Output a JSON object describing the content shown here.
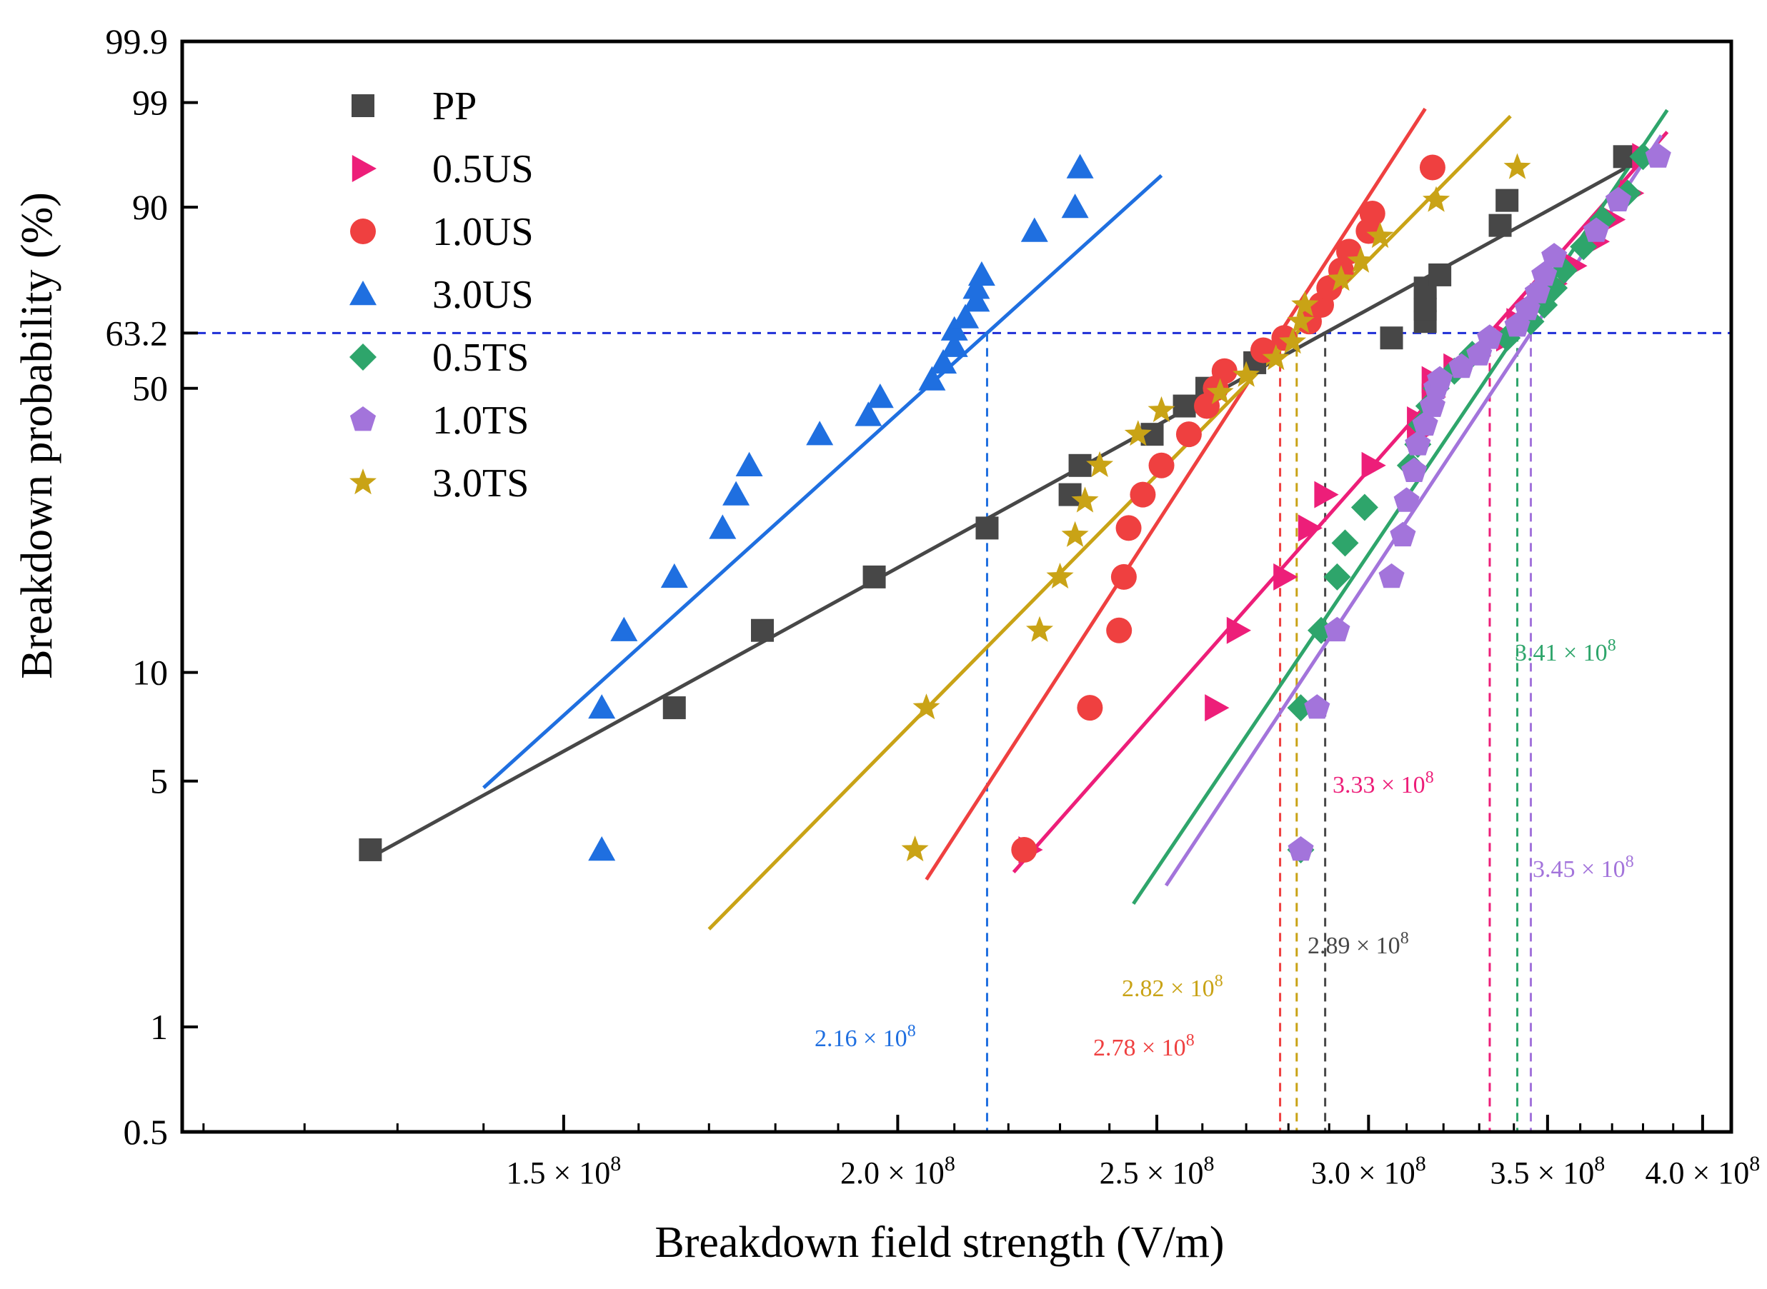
{
  "chart_data": {
    "type": "scatter",
    "title": "",
    "xlabel": "Breakdown field strength (V/m)",
    "ylabel": "Breakdown probability (%)",
    "x_scale": "log",
    "y_scale": "weibull",
    "xlim": [
      108000000,
      410000000
    ],
    "ylim": [
      0.5,
      99.9
    ],
    "x_ticks": [
      {
        "value": 150000000,
        "mantissa": "1.5",
        "label": "1.5 × 10",
        "exp": "8"
      },
      {
        "value": 200000000,
        "mantissa": "2.0",
        "label": "2.0 × 10",
        "exp": "8"
      },
      {
        "value": 250000000,
        "mantissa": "2.5",
        "label": "2.5 × 10",
        "exp": "8"
      },
      {
        "value": 300000000,
        "mantissa": "3.0",
        "label": "3.0 × 10",
        "exp": "8"
      },
      {
        "value": 350000000,
        "mantissa": "3.5",
        "label": "3.5 × 10",
        "exp": "8"
      },
      {
        "value": 400000000,
        "mantissa": "4.0",
        "label": "4.0 × 10",
        "exp": "8"
      }
    ],
    "y_ticks": [
      {
        "value": 0.5,
        "label": "0.5"
      },
      {
        "value": 1,
        "label": "1"
      },
      {
        "value": 5,
        "label": "5"
      },
      {
        "value": 10,
        "label": "10"
      },
      {
        "value": 50,
        "label": "50"
      },
      {
        "value": 63.2,
        "label": "63.2"
      },
      {
        "value": 90,
        "label": "90"
      },
      {
        "value": 99,
        "label": "99"
      },
      {
        "value": 99.9,
        "label": "99.9"
      }
    ],
    "reference_line": {
      "y": 63.2,
      "color": "#1f2fd6",
      "style": "dashed"
    },
    "legend_position": "top-left",
    "series": [
      {
        "name": "PP",
        "color": "#474747",
        "marker": "square",
        "eta": 289000000,
        "annotation": "2.89 × 10",
        "annotation_exp": "8",
        "fit_range": [
          128000000,
          380000000
        ],
        "points": [
          [
            127000000,
            3.2
          ],
          [
            165000000,
            8
          ],
          [
            178000000,
            13
          ],
          [
            196000000,
            18
          ],
          [
            216000000,
            24
          ],
          [
            232000000,
            29
          ],
          [
            234000000,
            34
          ],
          [
            249000000,
            40
          ],
          [
            256000000,
            46
          ],
          [
            261000000,
            50
          ],
          [
            272000000,
            56
          ],
          [
            306000000,
            62
          ],
          [
            315000000,
            66
          ],
          [
            315000000,
            69
          ],
          [
            315000000,
            71
          ],
          [
            315000000,
            74
          ],
          [
            319000000,
            77
          ],
          [
            336000000,
            87
          ],
          [
            338000000,
            91
          ],
          [
            374000000,
            96
          ]
        ]
      },
      {
        "name": "0.5US",
        "color": "#ed1e79",
        "marker": "triangle-right",
        "eta": 333000000,
        "annotation": "3.33 × 10",
        "annotation_exp": "8",
        "fit_range": [
          221000000,
          388000000
        ],
        "points": [
          [
            224000000,
            3.2
          ],
          [
            263000000,
            8
          ],
          [
            268000000,
            13
          ],
          [
            279000000,
            18
          ],
          [
            285000000,
            24
          ],
          [
            289000000,
            29
          ],
          [
            301000000,
            34
          ],
          [
            313000000,
            40
          ],
          [
            313000000,
            43
          ],
          [
            317000000,
            48
          ],
          [
            317000000,
            52
          ],
          [
            323000000,
            55
          ],
          [
            338000000,
            62
          ],
          [
            341000000,
            66
          ],
          [
            345000000,
            69
          ],
          [
            348000000,
            72
          ],
          [
            352000000,
            75
          ],
          [
            358000000,
            79
          ],
          [
            365000000,
            84
          ],
          [
            370000000,
            88
          ],
          [
            376000000,
            92
          ],
          [
            380000000,
            96
          ]
        ]
      },
      {
        "name": "1.0US",
        "color": "#ef4040",
        "marker": "circle",
        "eta": 278000000,
        "annotation": "2.78 × 10",
        "annotation_exp": "8",
        "fit_range": [
          205000000,
          315000000
        ],
        "points": [
          [
            223000000,
            3.2
          ],
          [
            236000000,
            8
          ],
          [
            242000000,
            13
          ],
          [
            243000000,
            18
          ],
          [
            244000000,
            24
          ],
          [
            247000000,
            29
          ],
          [
            251000000,
            34
          ],
          [
            257000000,
            40
          ],
          [
            261000000,
            46
          ],
          [
            263000000,
            50
          ],
          [
            265000000,
            54
          ],
          [
            274000000,
            59
          ],
          [
            279000000,
            62
          ],
          [
            285000000,
            66
          ],
          [
            288000000,
            70
          ],
          [
            290000000,
            74
          ],
          [
            293000000,
            78
          ],
          [
            295000000,
            82
          ],
          [
            300000000,
            86
          ],
          [
            301000000,
            89
          ],
          [
            317000000,
            95
          ]
        ]
      },
      {
        "name": "3.0US",
        "color": "#1f6fe0",
        "marker": "triangle-up",
        "eta": 216000000,
        "annotation": "2.16 × 10",
        "annotation_exp": "8",
        "fit_range": [
          140000000,
          251000000
        ],
        "points": [
          [
            155000000,
            3.2
          ],
          [
            155000000,
            8
          ],
          [
            158000000,
            13
          ],
          [
            165000000,
            18
          ],
          [
            172000000,
            24
          ],
          [
            174000000,
            29
          ],
          [
            176000000,
            34
          ],
          [
            187000000,
            40
          ],
          [
            195000000,
            44
          ],
          [
            197000000,
            48
          ],
          [
            206000000,
            52
          ],
          [
            208000000,
            56
          ],
          [
            210000000,
            60
          ],
          [
            210000000,
            64
          ],
          [
            212000000,
            67
          ],
          [
            214000000,
            71
          ],
          [
            214000000,
            74
          ],
          [
            215000000,
            77
          ],
          [
            225000000,
            86
          ],
          [
            233000000,
            90
          ],
          [
            234000000,
            95
          ]
        ]
      },
      {
        "name": "0.5TS",
        "color": "#2ea56b",
        "marker": "diamond",
        "eta": 341000000,
        "annotation": "3.41 × 10",
        "annotation_exp": "8",
        "fit_range": [
          245000000,
          388000000
        ],
        "points": [
          [
            283000000,
            3.2
          ],
          [
            283000000,
            8
          ],
          [
            288000000,
            13
          ],
          [
            292000000,
            18
          ],
          [
            294000000,
            22
          ],
          [
            299000000,
            27
          ],
          [
            311000000,
            34
          ],
          [
            313000000,
            38
          ],
          [
            314000000,
            42
          ],
          [
            316000000,
            46
          ],
          [
            318000000,
            50
          ],
          [
            323000000,
            54
          ],
          [
            328000000,
            58
          ],
          [
            338000000,
            62
          ],
          [
            345000000,
            66
          ],
          [
            349000000,
            70
          ],
          [
            352000000,
            74
          ],
          [
            355000000,
            78
          ],
          [
            361000000,
            83
          ],
          [
            367000000,
            88
          ],
          [
            375000000,
            92
          ],
          [
            380000000,
            96
          ]
        ]
      },
      {
        "name": "1.0TS",
        "color": "#a374db",
        "marker": "pentagon",
        "eta": 345000000,
        "annotation": "3.45 × 10",
        "annotation_exp": "8",
        "fit_range": [
          252000000,
          386000000
        ],
        "points": [
          [
            283000000,
            3.2
          ],
          [
            287000000,
            8
          ],
          [
            292000000,
            13
          ],
          [
            306000000,
            18
          ],
          [
            309000000,
            23
          ],
          [
            310000000,
            28
          ],
          [
            312000000,
            33
          ],
          [
            313000000,
            38
          ],
          [
            315000000,
            42
          ],
          [
            317000000,
            46
          ],
          [
            318000000,
            50
          ],
          [
            319000000,
            52
          ],
          [
            325000000,
            55
          ],
          [
            330000000,
            58
          ],
          [
            333000000,
            62
          ],
          [
            341000000,
            65
          ],
          [
            344000000,
            69
          ],
          [
            347000000,
            73
          ],
          [
            349000000,
            77
          ],
          [
            352000000,
            81
          ],
          [
            365000000,
            86
          ],
          [
            372000000,
            91
          ],
          [
            385000000,
            96
          ]
        ]
      },
      {
        "name": "3.0TS",
        "color": "#c9a316",
        "marker": "star",
        "eta": 282000000,
        "annotation": "2.82 × 10",
        "annotation_exp": "8",
        "fit_range": [
          170000000,
          339000000
        ],
        "points": [
          [
            203000000,
            3.2
          ],
          [
            205000000,
            8
          ],
          [
            226000000,
            13
          ],
          [
            230000000,
            18
          ],
          [
            233000000,
            23
          ],
          [
            235000000,
            28
          ],
          [
            238000000,
            34
          ],
          [
            246000000,
            40
          ],
          [
            251000000,
            45
          ],
          [
            264000000,
            49
          ],
          [
            270000000,
            53
          ],
          [
            277000000,
            57
          ],
          [
            281000000,
            61
          ],
          [
            283000000,
            66
          ],
          [
            284000000,
            70
          ],
          [
            293000000,
            76
          ],
          [
            298000000,
            80
          ],
          [
            303000000,
            85
          ],
          [
            318000000,
            91
          ],
          [
            341000000,
            95
          ]
        ]
      }
    ]
  }
}
